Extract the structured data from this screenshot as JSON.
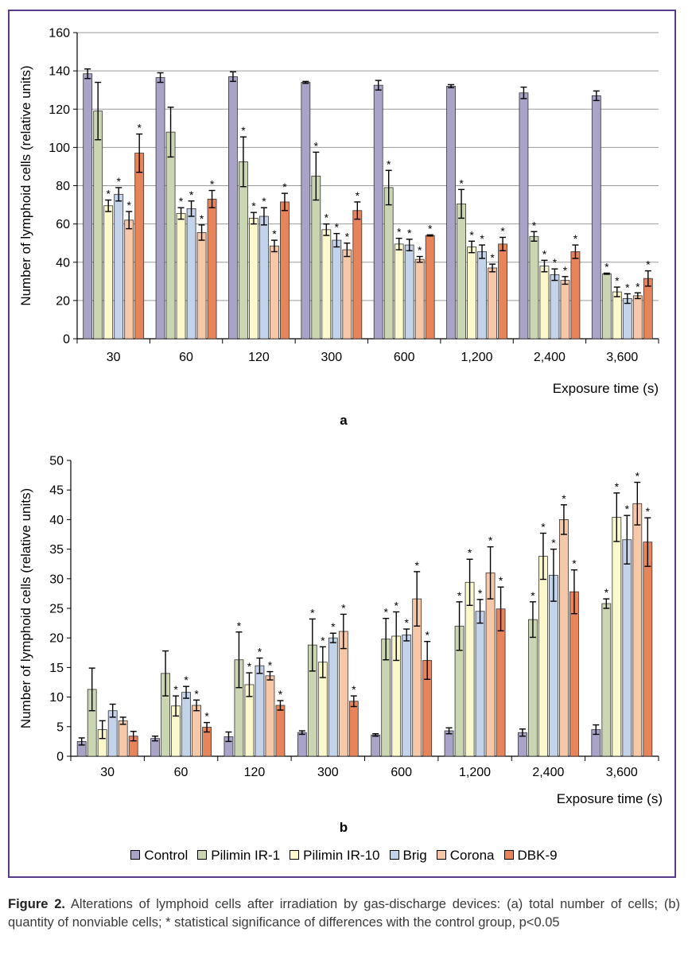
{
  "figure": {
    "caption_label": "Figure 2.",
    "caption_text": " Alterations of lymphoid cells after irradiation by gas-discharge devices: (a) total number of cells; (b) quantity of nonviable cells; * statistical significance of differences with the control group, p<0.05"
  },
  "legend": [
    {
      "name": "Control",
      "color": "#a9a3c8"
    },
    {
      "name": "Pilimin IR-1",
      "color": "#c9d6b1"
    },
    {
      "name": "Pilimin IR-10",
      "color": "#fbf8cb"
    },
    {
      "name": "Brig",
      "color": "#c3d3ea"
    },
    {
      "name": "Corona",
      "color": "#f7c8a8"
    },
    {
      "name": "DBK-9",
      "color": "#e8845a"
    }
  ],
  "chart_data": [
    {
      "type": "bar",
      "panel_label": "a",
      "ylabel": "Number of lymphoid cells (relative units)",
      "xlabel": "Exposure time (s)",
      "ylim": [
        0,
        160
      ],
      "yticks": [
        0,
        20,
        40,
        60,
        80,
        100,
        120,
        140,
        160
      ],
      "grid": true,
      "categories": [
        "30",
        "60",
        "120",
        "300",
        "600",
        "1,200",
        "2,400",
        "3,600"
      ],
      "series": [
        {
          "name": "Control",
          "values": [
            138.5,
            136.5,
            137,
            134,
            132.5,
            132,
            128.5,
            127
          ],
          "errors": [
            2.5,
            2.5,
            2.5,
            0.5,
            2.5,
            0.8,
            3,
            2.5
          ],
          "sig": [
            false,
            false,
            false,
            false,
            false,
            false,
            false,
            false
          ]
        },
        {
          "name": "Pilimin IR-1",
          "values": [
            119,
            108,
            92.5,
            85,
            79,
            70.5,
            53.5,
            34
          ],
          "errors": [
            15,
            13,
            13,
            12.5,
            9,
            7.5,
            2.5,
            0.3
          ],
          "sig": [
            false,
            false,
            true,
            true,
            true,
            true,
            true,
            true
          ]
        },
        {
          "name": "Pilimin IR-10",
          "values": [
            69.5,
            65.5,
            63,
            57,
            49.5,
            48,
            38,
            24.5
          ],
          "errors": [
            3,
            3,
            3,
            3,
            3,
            3,
            3,
            2.5
          ],
          "sig": [
            true,
            true,
            true,
            true,
            true,
            true,
            true,
            true
          ]
        },
        {
          "name": "Brig",
          "values": [
            75.5,
            68,
            64,
            51.5,
            49,
            45.5,
            33.5,
            21
          ],
          "errors": [
            3.5,
            4,
            4.5,
            3.5,
            3,
            3.5,
            3,
            2.5
          ],
          "sig": [
            true,
            true,
            true,
            true,
            true,
            true,
            true,
            true
          ]
        },
        {
          "name": "Corona",
          "values": [
            62,
            55.5,
            48.5,
            46.5,
            41.5,
            37,
            30.5,
            22.5
          ],
          "errors": [
            4.5,
            4,
            3,
            3.5,
            1.5,
            2,
            2,
            1.5
          ],
          "sig": [
            true,
            true,
            true,
            true,
            true,
            true,
            true,
            true
          ]
        },
        {
          "name": "DBK-9",
          "values": [
            97,
            73,
            71.5,
            67,
            54,
            49.5,
            45.5,
            31.5
          ],
          "errors": [
            10,
            4.5,
            4.5,
            4.5,
            0.3,
            3.5,
            3.5,
            4
          ],
          "sig": [
            true,
            true,
            true,
            true,
            true,
            true,
            true,
            true
          ]
        }
      ]
    },
    {
      "type": "bar",
      "panel_label": "b",
      "ylabel": "Number of lymphoid cells (relative units)",
      "xlabel": "Exposure time (s)",
      "ylim": [
        0,
        50
      ],
      "yticks": [
        0,
        5,
        10,
        15,
        20,
        25,
        30,
        35,
        40,
        45,
        50
      ],
      "grid": false,
      "categories": [
        "30",
        "60",
        "120",
        "300",
        "600",
        "1,200",
        "2,400",
        "3,600"
      ],
      "series": [
        {
          "name": "Control",
          "values": [
            2.5,
            3,
            3.3,
            4,
            3.6,
            4.3,
            4,
            4.5
          ],
          "errors": [
            0.6,
            0.4,
            0.8,
            0.3,
            0.2,
            0.5,
            0.6,
            0.8
          ],
          "sig": [
            false,
            false,
            false,
            false,
            false,
            false,
            false,
            false
          ]
        },
        {
          "name": "Pilimin IR-1",
          "values": [
            11.3,
            14,
            16.3,
            18.8,
            19.8,
            22,
            23.1,
            25.8
          ],
          "errors": [
            3.6,
            3.8,
            4.7,
            4.4,
            3.5,
            4.1,
            3,
            0.8
          ],
          "sig": [
            false,
            false,
            true,
            true,
            true,
            true,
            true,
            true
          ]
        },
        {
          "name": "Pilimin IR-10",
          "values": [
            4.5,
            8.5,
            12.1,
            15.9,
            20.3,
            29.4,
            33.8,
            40.4
          ],
          "errors": [
            1.5,
            1.7,
            2,
            2.6,
            4.1,
            3.9,
            3.9,
            4.1
          ],
          "sig": [
            false,
            true,
            true,
            true,
            true,
            true,
            true,
            true
          ]
        },
        {
          "name": "Brig",
          "values": [
            7.7,
            10.8,
            15.3,
            20,
            20.5,
            24.5,
            30.6,
            36.6
          ],
          "errors": [
            1.1,
            1,
            1.3,
            0.8,
            1,
            2,
            4.4,
            4.1
          ],
          "sig": [
            false,
            true,
            true,
            true,
            true,
            true,
            true,
            true
          ]
        },
        {
          "name": "Corona",
          "values": [
            6,
            8.6,
            13.6,
            21.1,
            26.6,
            31,
            40,
            42.7
          ],
          "errors": [
            0.6,
            0.9,
            0.7,
            2.9,
            4.6,
            4.4,
            2.5,
            3.6
          ],
          "sig": [
            false,
            true,
            true,
            true,
            true,
            true,
            true,
            true
          ]
        },
        {
          "name": "DBK-9",
          "values": [
            3.4,
            4.9,
            8.6,
            9.3,
            16.2,
            24.9,
            27.8,
            36.2
          ],
          "errors": [
            0.8,
            0.8,
            0.8,
            0.9,
            3.2,
            3.7,
            3.7,
            4.1
          ],
          "sig": [
            false,
            true,
            true,
            true,
            true,
            true,
            true,
            true
          ]
        }
      ]
    }
  ]
}
